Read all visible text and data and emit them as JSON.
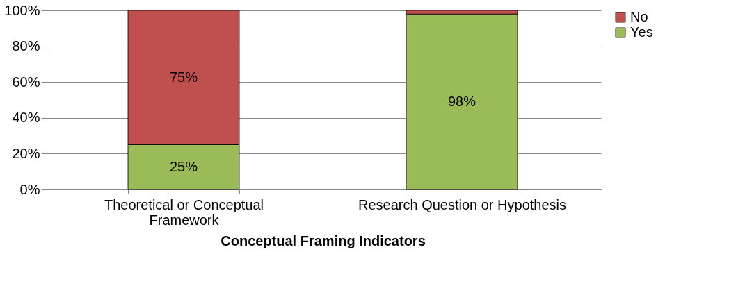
{
  "chart_data": {
    "type": "bar",
    "stacked": true,
    "xlabel": "Conceptual Framing Indicators",
    "categories": [
      "Theoretical or Conceptual Framework",
      "Research Question or Hypothesis"
    ],
    "series": [
      {
        "name": "Yes",
        "color": "#9bbb59",
        "values": [
          25,
          98
        ],
        "value_labels": [
          "25%",
          "98%"
        ]
      },
      {
        "name": "No",
        "color": "#c0504d",
        "values": [
          75,
          2
        ],
        "value_labels": [
          "75%",
          null
        ]
      }
    ],
    "ylim": [
      0,
      100
    ],
    "yticks": [
      {
        "value": 0,
        "label": "0%"
      },
      {
        "value": 20,
        "label": "20%"
      },
      {
        "value": 40,
        "label": "40%"
      },
      {
        "value": 60,
        "label": "60%"
      },
      {
        "value": 80,
        "label": "80%"
      },
      {
        "value": 100,
        "label": "100%"
      }
    ],
    "grid": "y",
    "legend": "right"
  }
}
